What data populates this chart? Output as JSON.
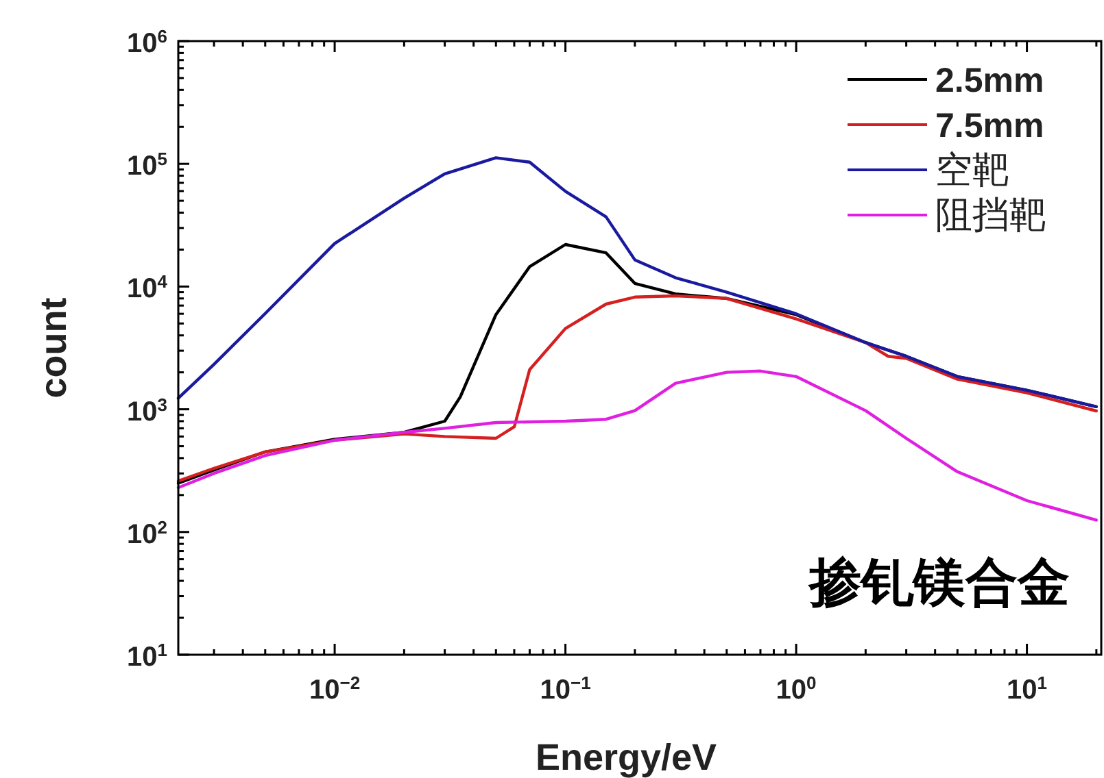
{
  "chart_data": {
    "type": "line",
    "xlabel": "Energy/eV",
    "ylabel": "count",
    "log": "xy",
    "xlim": [
      0.0021,
      21
    ],
    "ylim": [
      10,
      1000000
    ],
    "xticks": [
      {
        "value": 0.01,
        "label": "10$^{−2}$"
      },
      {
        "value": 0.1,
        "label": "10$^{−1}$"
      },
      {
        "value": 1,
        "label": "10$^{0}$"
      },
      {
        "value": 10,
        "label": "10$^{1}$"
      }
    ],
    "yticks": [
      {
        "value": 10,
        "label": "10$^{1}$"
      },
      {
        "value": 100,
        "label": "10$^{2}$"
      },
      {
        "value": 1000,
        "label": "10$^{3}$"
      },
      {
        "value": 10000,
        "label": "10$^{4}$"
      },
      {
        "value": 100000,
        "label": "10$^{5}$"
      },
      {
        "value": 1000000,
        "label": "10$^{6}$"
      }
    ],
    "grid": false,
    "legend": "top right",
    "line_style": "solid",
    "annotations": [
      "掺钆镁合金"
    ],
    "series": [
      {
        "name": "2.5mm",
        "color": "#000000",
        "x": [
          0.0021,
          0.003,
          0.005,
          0.01,
          0.02,
          0.03,
          0.035,
          0.05,
          0.07,
          0.1,
          0.15,
          0.2,
          0.3,
          0.5,
          1,
          2,
          3,
          5,
          10,
          20
        ],
        "values": [
          250,
          320,
          450,
          570,
          650,
          800,
          1260,
          5900,
          14500,
          22000,
          18800,
          10600,
          8700,
          8000,
          5900,
          3500,
          2700,
          1850,
          1430,
          1050
        ]
      },
      {
        "name": "7.5mm",
        "color": "#d42020",
        "x": [
          0.0021,
          0.003,
          0.005,
          0.01,
          0.02,
          0.03,
          0.05,
          0.06,
          0.07,
          0.1,
          0.15,
          0.2,
          0.3,
          0.5,
          1,
          2,
          2.5,
          3,
          5,
          10,
          20
        ],
        "values": [
          260,
          330,
          450,
          560,
          630,
          600,
          580,
          720,
          2100,
          4550,
          7200,
          8200,
          8400,
          8000,
          5450,
          3500,
          2700,
          2600,
          1760,
          1360,
          970
        ]
      },
      {
        "name": "空靶",
        "color": "#1a1aa0",
        "x": [
          0.0021,
          0.003,
          0.005,
          0.01,
          0.02,
          0.03,
          0.05,
          0.07,
          0.1,
          0.15,
          0.2,
          0.3,
          0.5,
          1,
          2,
          3,
          5,
          10,
          20
        ],
        "values": [
          1230,
          2330,
          6030,
          22400,
          52400,
          83000,
          112000,
          103000,
          59600,
          37000,
          16500,
          11800,
          9000,
          6000,
          3500,
          2700,
          1850,
          1430,
          1050
        ]
      },
      {
        "name": "阻挡靶",
        "color": "#e020e0",
        "x": [
          0.0021,
          0.003,
          0.005,
          0.01,
          0.02,
          0.03,
          0.05,
          0.07,
          0.1,
          0.15,
          0.2,
          0.3,
          0.5,
          0.7,
          1,
          2,
          3,
          5,
          10,
          20
        ],
        "values": [
          230,
          300,
          420,
          560,
          650,
          700,
          780,
          790,
          800,
          830,
          975,
          1630,
          2000,
          2050,
          1850,
          975,
          580,
          310,
          180,
          125
        ]
      }
    ]
  }
}
